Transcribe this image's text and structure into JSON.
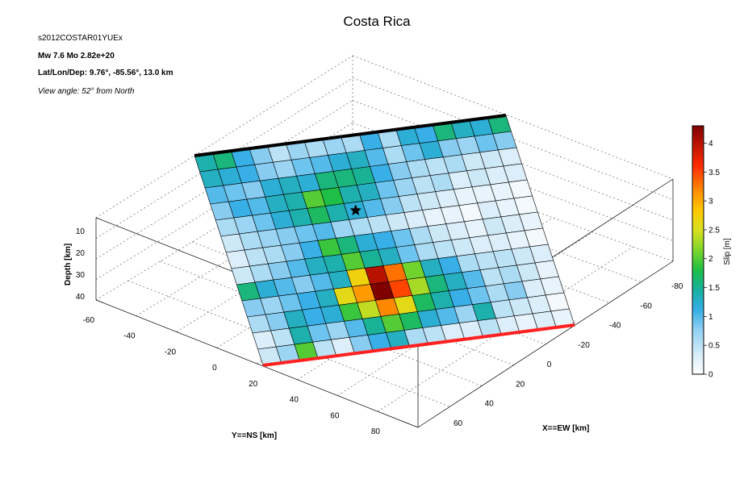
{
  "figure": {
    "title": "Costa Rica",
    "event_id": "s2012COSTAR01YUEx",
    "magnitude_line": "Mw 7.6    Mo 2.82e+20",
    "location_line": "Lat/Lon/Dep: 9.76°, -85.56°, 13.0 km",
    "view_angle": "View angle:  52° from North"
  },
  "colors": {
    "top_edge": "#000000",
    "bottom_edge": "#ff2020",
    "grid": "#666666",
    "box": "#000000"
  },
  "chart_data": {
    "type": "heatmap",
    "title": "Costa Rica",
    "xlabel": "X==EW [km]",
    "ylabel": "Y==NS [km]",
    "zlabel": "Depth [km]",
    "colorbar_label": "Slip [m]",
    "x_ticks": [
      "-80",
      "-60",
      "-40",
      "-20",
      "0",
      "20",
      "40",
      "60"
    ],
    "y_ticks": [
      "-60",
      "-40",
      "-20",
      "0",
      "20",
      "40",
      "60",
      "80"
    ],
    "z_ticks": [
      "10",
      "20",
      "30",
      "40"
    ],
    "colorbar_ticks": [
      "0",
      "0.5",
      "1",
      "1.5",
      "2",
      "2.5",
      "3",
      "3.5",
      "4"
    ],
    "color_range": [
      0,
      4.3
    ],
    "grid": true,
    "colormap_stops": [
      [
        0.0,
        "#ffffff"
      ],
      [
        0.08,
        "#d6ecf8"
      ],
      [
        0.18,
        "#8fd0f2"
      ],
      [
        0.26,
        "#33aee6"
      ],
      [
        0.34,
        "#19b0a0"
      ],
      [
        0.42,
        "#1fbf45"
      ],
      [
        0.5,
        "#7fd62a"
      ],
      [
        0.58,
        "#d8e020"
      ],
      [
        0.66,
        "#ffc800"
      ],
      [
        0.74,
        "#ff8c00"
      ],
      [
        0.84,
        "#ff2a00"
      ],
      [
        1.0,
        "#800000"
      ]
    ],
    "n_strike": 17,
    "n_dip": 13,
    "slip": [
      [
        1.4,
        1.6,
        1.1,
        0.8,
        0.5,
        0.7,
        0.6,
        0.7,
        0.6,
        1.1,
        0.6,
        1.2,
        1.1,
        1.6,
        1.3,
        1.2,
        1.6
      ],
      [
        1.3,
        1.2,
        1.1,
        0.8,
        0.7,
        0.9,
        1.0,
        1.2,
        1.3,
        1.0,
        0.6,
        0.9,
        1.2,
        0.8,
        0.7,
        0.9,
        0.8
      ],
      [
        1.0,
        0.9,
        0.8,
        1.2,
        1.3,
        1.2,
        1.6,
        1.6,
        1.5,
        1.1,
        0.8,
        0.6,
        0.5,
        0.6,
        0.4,
        0.4,
        0.3
      ],
      [
        0.8,
        1.1,
        1.0,
        1.3,
        1.4,
        2.0,
        1.8,
        1.4,
        1.3,
        0.9,
        0.7,
        0.5,
        0.6,
        0.3,
        0.4,
        0.3,
        0.3
      ],
      [
        0.6,
        0.7,
        0.9,
        1.2,
        1.4,
        1.7,
        1.4,
        1.2,
        1.0,
        0.8,
        0.5,
        0.4,
        0.3,
        0.2,
        0.2,
        0.2,
        0.1
      ],
      [
        0.4,
        0.6,
        0.7,
        0.8,
        0.9,
        1.0,
        0.7,
        0.6,
        0.5,
        0.4,
        0.3,
        0.2,
        0.2,
        0.1,
        0.3,
        0.2,
        0.1
      ],
      [
        0.3,
        0.5,
        0.6,
        0.8,
        1.1,
        1.9,
        1.6,
        1.2,
        1.1,
        0.9,
        0.6,
        0.4,
        0.3,
        0.2,
        0.4,
        0.3,
        0.2
      ],
      [
        0.4,
        0.6,
        0.8,
        1.0,
        1.3,
        1.4,
        2.0,
        1.5,
        1.3,
        0.9,
        0.6,
        0.5,
        0.4,
        0.3,
        0.3,
        0.2,
        0.1
      ],
      [
        1.6,
        1.2,
        1.0,
        0.8,
        1.0,
        1.3,
        2.7,
        4.0,
        3.3,
        2.1,
        1.3,
        1.1,
        0.6,
        0.5,
        0.5,
        0.4,
        0.3
      ],
      [
        0.8,
        0.7,
        0.9,
        1.1,
        1.3,
        2.6,
        3.1,
        4.3,
        3.5,
        2.3,
        1.6,
        1.3,
        1.0,
        0.5,
        0.6,
        0.4,
        0.2
      ],
      [
        0.6,
        0.8,
        1.3,
        1.1,
        1.2,
        1.9,
        2.4,
        3.2,
        2.6,
        1.7,
        1.4,
        1.1,
        0.9,
        0.6,
        0.8,
        0.3,
        0.2
      ],
      [
        0.3,
        0.5,
        1.4,
        0.9,
        0.7,
        1.0,
        1.5,
        2.0,
        1.7,
        1.2,
        1.0,
        0.7,
        1.4,
        0.5,
        0.4,
        0.3,
        0.1
      ],
      [
        0.4,
        0.7,
        2.0,
        0.5,
        0.3,
        0.8,
        1.1,
        1.3,
        0.6,
        0.5,
        0.3,
        0.3,
        0.5,
        0.3,
        0.2,
        0.3,
        0.2
      ]
    ],
    "hypocenter": {
      "strike_index": 7,
      "dip_index": 4
    }
  }
}
